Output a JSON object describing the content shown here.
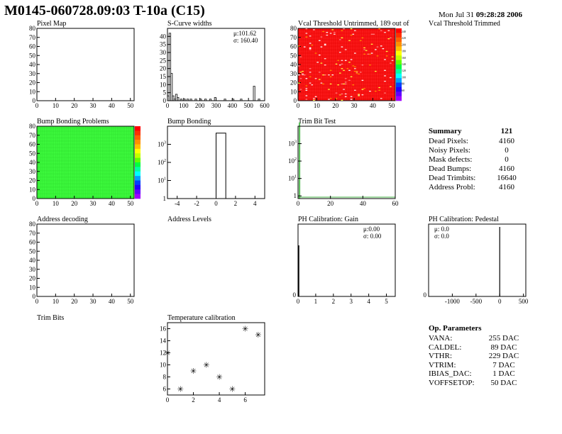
{
  "header": {
    "title": "M0145-060728.09:03 T-10a (C15)",
    "timestamp_date": "Mon Jul 31",
    "timestamp_time": "09:28:28 2006"
  },
  "panels": {
    "pixel_map": "Pixel Map",
    "scurve_widths": "S-Curve widths",
    "vcal_untrimmed": "Vcal Threshold Untrimmed, 189 out of",
    "vcal_trimmed": "Vcal Threshold Trimmed",
    "bump_problems": "Bump Bonding Problems",
    "bump_bonding": "Bump Bonding",
    "trim_bit_test": "Trim Bit Test",
    "address_decoding": "Address decoding",
    "address_levels": "Address Levels",
    "ph_gain": "PH Calibration: Gain",
    "ph_pedestal": "PH Calibration: Pedestal",
    "trim_bits": "Trim Bits",
    "temperature": "Temperature calibration"
  },
  "stats": {
    "scurve_mu": "μ:101.62",
    "scurve_sigma": "σ: 160.40",
    "gain_mu": "μ:0.00",
    "gain_sigma": "σ: 0.00",
    "ped_mu": "μ: 0.0",
    "ped_sigma": "σ:  0.0"
  },
  "summary": {
    "title": "Summary",
    "total": "121",
    "rows": [
      {
        "label": "Dead Pixels:",
        "value": "4160"
      },
      {
        "label": "Noisy Pixels:",
        "value": "0"
      },
      {
        "label": "Mask defects:",
        "value": "0"
      },
      {
        "label": "Dead Bumps:",
        "value": "4160"
      },
      {
        "label": "Dead Trimbits:",
        "value": "16640"
      },
      {
        "label": "Address Probl:",
        "value": "4160"
      }
    ]
  },
  "op_params": {
    "title": "Op. Parameters",
    "rows": [
      {
        "label": "VANA:",
        "value": "255 DAC"
      },
      {
        "label": "CALDEL:",
        "value": "89 DAC"
      },
      {
        "label": "VTHR:",
        "value": "229 DAC"
      },
      {
        "label": "VTRIM:",
        "value": "7 DAC"
      },
      {
        "label": "IBIAS_DAC:",
        "value": "1 DAC"
      },
      {
        "label": "VOFFSETOP:",
        "value": "50 DAC"
      }
    ]
  },
  "chart_data": [
    {
      "id": "pixel_map",
      "type": "heatmap",
      "title": "Pixel Map",
      "xlim": [
        0,
        52
      ],
      "ylim": [
        0,
        80
      ],
      "x_ticks": [
        "0",
        "10",
        "20",
        "30",
        "40",
        "50"
      ],
      "y_ticks": [
        "0",
        "10",
        "20",
        "30",
        "40",
        "50",
        "60",
        "70",
        "80"
      ],
      "values": []
    },
    {
      "id": "scurve",
      "type": "bar",
      "title": "S-Curve widths",
      "xlim": [
        0,
        600
      ],
      "ylim": [
        0,
        45
      ],
      "x_ticks": [
        "0",
        "100",
        "200",
        "300",
        "400",
        "500",
        "600"
      ],
      "y_ticks": [
        "0",
        "5",
        "10",
        "15",
        "20",
        "25",
        "30",
        "35",
        "40"
      ],
      "bins": [
        [
          0,
          3
        ],
        [
          10,
          42
        ],
        [
          20,
          17
        ],
        [
          30,
          3
        ],
        [
          40,
          1
        ],
        [
          50,
          4
        ],
        [
          60,
          2
        ],
        [
          80,
          1
        ],
        [
          100,
          1
        ],
        [
          120,
          1
        ],
        [
          140,
          1
        ],
        [
          170,
          1
        ],
        [
          200,
          1
        ],
        [
          230,
          1
        ],
        [
          260,
          1
        ],
        [
          290,
          2
        ],
        [
          350,
          1
        ],
        [
          400,
          1
        ],
        [
          450,
          1
        ],
        [
          530,
          9
        ],
        [
          560,
          1
        ]
      ],
      "bin_width": 10
    },
    {
      "id": "vcal_untrimmed",
      "type": "heatmap",
      "title": "Vcal Threshold Untrimmed, 189 out of",
      "xlim": [
        0,
        52
      ],
      "ylim": [
        0,
        80
      ],
      "x_ticks": [
        "0",
        "10",
        "20",
        "30",
        "40",
        "50"
      ],
      "y_ticks": [
        "0",
        "10",
        "20",
        "30",
        "40",
        "50",
        "60",
        "70",
        "80"
      ],
      "base_color": "#ff2020",
      "palette_labels": [
        "240",
        "220",
        "200",
        "180",
        "160",
        "140",
        "120",
        "100",
        "80",
        "60"
      ]
    },
    {
      "id": "bump_problems",
      "type": "heatmap",
      "title": "Bump Bonding Problems",
      "xlim": [
        0,
        52
      ],
      "ylim": [
        0,
        80
      ],
      "x_ticks": [
        "0",
        "10",
        "20",
        "30",
        "40",
        "50"
      ],
      "y_ticks": [
        "0",
        "10",
        "20",
        "30",
        "40",
        "50",
        "60",
        "70",
        "80"
      ],
      "base_color": "#40ff40"
    },
    {
      "id": "bump_bonding",
      "type": "bar",
      "title": "Bump Bonding",
      "log_y": true,
      "xlim": [
        -5,
        5
      ],
      "ylim": [
        1,
        10000
      ],
      "x_ticks": [
        "-4",
        "-2",
        "0",
        "2",
        "4"
      ],
      "bins": [
        [
          0,
          4160
        ]
      ],
      "bin_width": 1
    },
    {
      "id": "trim_bit_test",
      "type": "bar",
      "title": "Trim Bit Test",
      "log_y": true,
      "xlim": [
        0,
        60
      ],
      "ylim": [
        0.7,
        10000
      ],
      "x_ticks": [
        "0",
        "20",
        "40",
        "60"
      ],
      "bins": [
        [
          0,
          16640
        ]
      ],
      "bin_width": 0.5
    },
    {
      "id": "address_decoding",
      "type": "heatmap",
      "title": "Address decoding",
      "xlim": [
        0,
        52
      ],
      "ylim": [
        0,
        80
      ],
      "x_ticks": [
        "0",
        "10",
        "20",
        "30",
        "40",
        "50"
      ],
      "y_ticks": [
        "0",
        "10",
        "20",
        "30",
        "40",
        "50",
        "60",
        "70",
        "80"
      ],
      "values": []
    },
    {
      "id": "ph_gain",
      "type": "bar",
      "title": "PH Calibration: Gain",
      "xlim": [
        0,
        5.5
      ],
      "x_ticks": [
        "0",
        "1",
        "2",
        "3",
        "4",
        "5"
      ],
      "values": []
    },
    {
      "id": "ph_pedestal",
      "type": "bar",
      "title": "PH Calibration: Pedestal",
      "xlim": [
        -1500,
        550
      ],
      "x_ticks": [
        "-1000",
        "-500",
        "0",
        "500"
      ],
      "bins": [
        [
          0,
          1
        ]
      ]
    },
    {
      "id": "temperature",
      "type": "scatter",
      "title": "Temperature calibration",
      "xlim": [
        0,
        7.5
      ],
      "ylim": [
        5,
        17
      ],
      "x_ticks": [
        "0",
        "2",
        "4",
        "6"
      ],
      "y_ticks": [
        "6",
        "8",
        "10",
        "12",
        "14",
        "16"
      ],
      "points": [
        [
          0,
          12
        ],
        [
          1,
          6
        ],
        [
          2,
          9
        ],
        [
          3,
          10
        ],
        [
          4,
          8
        ],
        [
          5,
          6
        ],
        [
          6,
          16
        ],
        [
          7,
          15
        ]
      ]
    }
  ]
}
